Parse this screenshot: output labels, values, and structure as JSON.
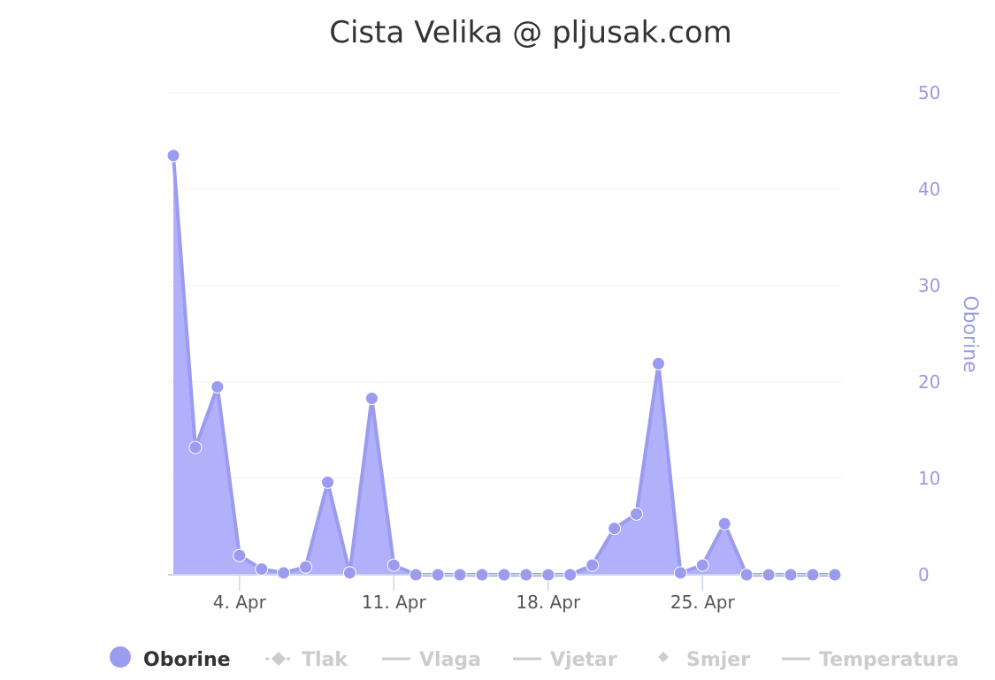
{
  "chart_data": {
    "type": "area",
    "title": "Cista Velika @ pljusak.com",
    "ylabel": "Oborine",
    "ylim": [
      0,
      50
    ],
    "yticks": [
      0,
      10,
      20,
      30,
      40,
      50
    ],
    "xticks": [
      {
        "day": 4,
        "label": "4. Apr"
      },
      {
        "day": 11,
        "label": "11. Apr"
      },
      {
        "day": 18,
        "label": "18. Apr"
      },
      {
        "day": 25,
        "label": "25. Apr"
      }
    ],
    "grid": true,
    "legend_position": "bottom",
    "series": [
      {
        "name": "Oborine",
        "color": "#9b9bf0",
        "fill": "#b0b0fb",
        "x": [
          1,
          2,
          3,
          4,
          5,
          6,
          7,
          8,
          9,
          10,
          11,
          12,
          13,
          14,
          15,
          16,
          17,
          18,
          19,
          20,
          21,
          22,
          23,
          24,
          25,
          26,
          27,
          28,
          29,
          30,
          31
        ],
        "values": [
          43.5,
          13.2,
          19.5,
          2.0,
          0.6,
          0.2,
          0.8,
          9.6,
          0.2,
          18.3,
          1.0,
          0.0,
          0.0,
          0.0,
          0.0,
          0.0,
          0.0,
          0.0,
          0.0,
          1.0,
          4.8,
          6.3,
          21.9,
          0.2,
          1.0,
          5.3,
          0.0,
          0.0,
          0.0,
          0.0,
          0.0
        ]
      }
    ]
  },
  "legend": [
    {
      "label": "Oborine",
      "symbol": "circle",
      "active": true
    },
    {
      "label": "Tlak",
      "symbol": "line-diamond",
      "active": false
    },
    {
      "label": "Vlaga",
      "symbol": "line",
      "active": false
    },
    {
      "label": "Vjetar",
      "symbol": "line",
      "active": false
    },
    {
      "label": "Smjer",
      "symbol": "diamond",
      "active": false
    },
    {
      "label": "Temperatura",
      "symbol": "line",
      "active": false
    }
  ],
  "colors": {
    "series": "#9b9bf0",
    "area": "#b0b0fb",
    "axis_text": "#9b9be3",
    "legend_active": "#333333",
    "legend_inactive": "#cccccc",
    "grid": "#f0f0f0"
  }
}
